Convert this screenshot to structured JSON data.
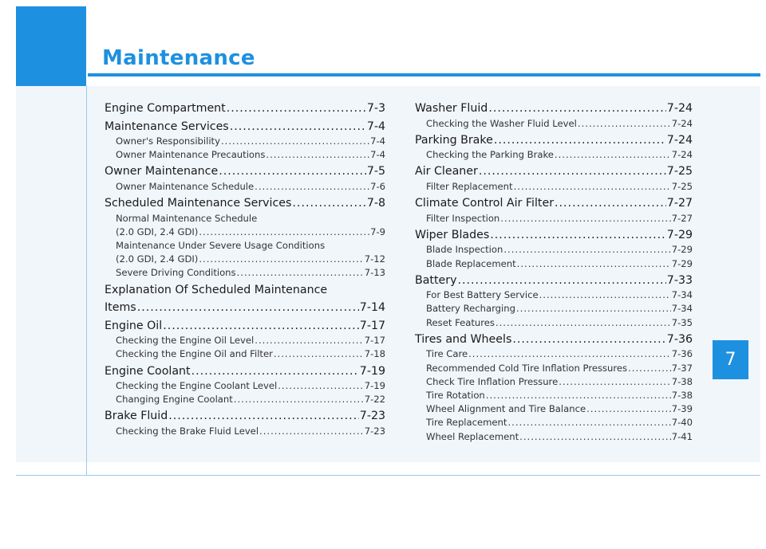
{
  "header": {
    "title": "Maintenance",
    "chapter": "7"
  },
  "left": [
    {
      "kind": "main",
      "label": "Engine Compartment ",
      "page": "7-3"
    },
    {
      "kind": "main",
      "label": "Maintenance Services ",
      "page": "7-4"
    },
    {
      "kind": "sub",
      "label": "Owner's Responsibility ",
      "page": "7-4"
    },
    {
      "kind": "sub",
      "label": "Owner Maintenance Precautions ",
      "page": "7-4"
    },
    {
      "kind": "main",
      "label": "Owner Maintenance ",
      "page": "7-5"
    },
    {
      "kind": "sub",
      "label": "Owner Maintenance Schedule ",
      "page": "7-6"
    },
    {
      "kind": "main",
      "label": "Scheduled Maintenance Services ",
      "page": "7-8"
    },
    {
      "kind": "sub-plain",
      "label": "Normal Maintenance Schedule"
    },
    {
      "kind": "sub",
      "label": "(2.0 GDI, 2.4 GDI) ",
      "page": "7-9"
    },
    {
      "kind": "sub-plain",
      "label": "Maintenance Under Severe Usage Conditions"
    },
    {
      "kind": "sub",
      "label": "(2.0 GDI, 2.4 GDI)",
      "page": "7-12"
    },
    {
      "kind": "sub",
      "label": "Severe Driving Conditions ",
      "page": "7-13"
    },
    {
      "kind": "main-plain",
      "label": "Explanation Of Scheduled Maintenance"
    },
    {
      "kind": "main",
      "label": "Items ",
      "page": "7-14"
    },
    {
      "kind": "main",
      "label": "Engine Oil ",
      "page": "7-17"
    },
    {
      "kind": "sub",
      "label": "Checking the Engine Oil Level ",
      "page": "7-17"
    },
    {
      "kind": "sub",
      "label": "Checking the Engine Oil and Filter ",
      "page": "7-18"
    },
    {
      "kind": "main",
      "label": "Engine Coolant ",
      "page": "7-19"
    },
    {
      "kind": "sub",
      "label": "Checking the Engine Coolant Level ",
      "page": "7-19"
    },
    {
      "kind": "sub",
      "label": "Changing Engine Coolant ",
      "page": "7-22"
    },
    {
      "kind": "main",
      "label": "Brake Fluid ",
      "page": "7-23"
    },
    {
      "kind": "sub",
      "label": "Checking the Brake Fluid Level ",
      "page": "7-23"
    }
  ],
  "right": [
    {
      "kind": "main",
      "label": "Washer Fluid ",
      "page": "7-24"
    },
    {
      "kind": "sub",
      "label": "Checking the Washer Fluid Level",
      "page": "7-24"
    },
    {
      "kind": "main",
      "label": "Parking Brake ",
      "page": "7-24"
    },
    {
      "kind": "sub",
      "label": "Checking the Parking Brake",
      "page": "7-24"
    },
    {
      "kind": "main",
      "label": "Air Cleaner ",
      "page": "7-25"
    },
    {
      "kind": "sub",
      "label": "Filter Replacement ",
      "page": "7-25"
    },
    {
      "kind": "main",
      "label": "Climate Control Air Filter ",
      "page": "7-27"
    },
    {
      "kind": "sub",
      "label": "Filter Inspection ",
      "page": "7-27"
    },
    {
      "kind": "main",
      "label": "Wiper Blades",
      "page": "7-29"
    },
    {
      "kind": "sub",
      "label": "Blade Inspection ",
      "page": "7-29"
    },
    {
      "kind": "sub",
      "label": "Blade Replacement ",
      "page": "7-29"
    },
    {
      "kind": "main",
      "label": "Battery",
      "page": "7-33"
    },
    {
      "kind": "sub",
      "label": "For Best Battery Service ",
      "page": "7-34"
    },
    {
      "kind": "sub",
      "label": "Battery Recharging ",
      "page": "7-34"
    },
    {
      "kind": "sub",
      "label": "Reset Features",
      "page": "7-35"
    },
    {
      "kind": "main",
      "label": "Tires and Wheels ",
      "page": "7-36"
    },
    {
      "kind": "sub",
      "label": "Tire Care",
      "page": "7-36"
    },
    {
      "kind": "sub",
      "label": "Recommended Cold Tire Inflation Pressures ",
      "page": "7-37"
    },
    {
      "kind": "sub",
      "label": "Check Tire Inflation Pressure ",
      "page": "7-38"
    },
    {
      "kind": "sub",
      "label": "Tire Rotation",
      "page": "7-38"
    },
    {
      "kind": "sub",
      "label": "Wheel Alignment and Tire Balance ",
      "page": "7-39"
    },
    {
      "kind": "sub",
      "label": "Tire Replacement ",
      "page": "7-40"
    },
    {
      "kind": "sub",
      "label": "Wheel Replacement ",
      "page": "7-41"
    }
  ]
}
